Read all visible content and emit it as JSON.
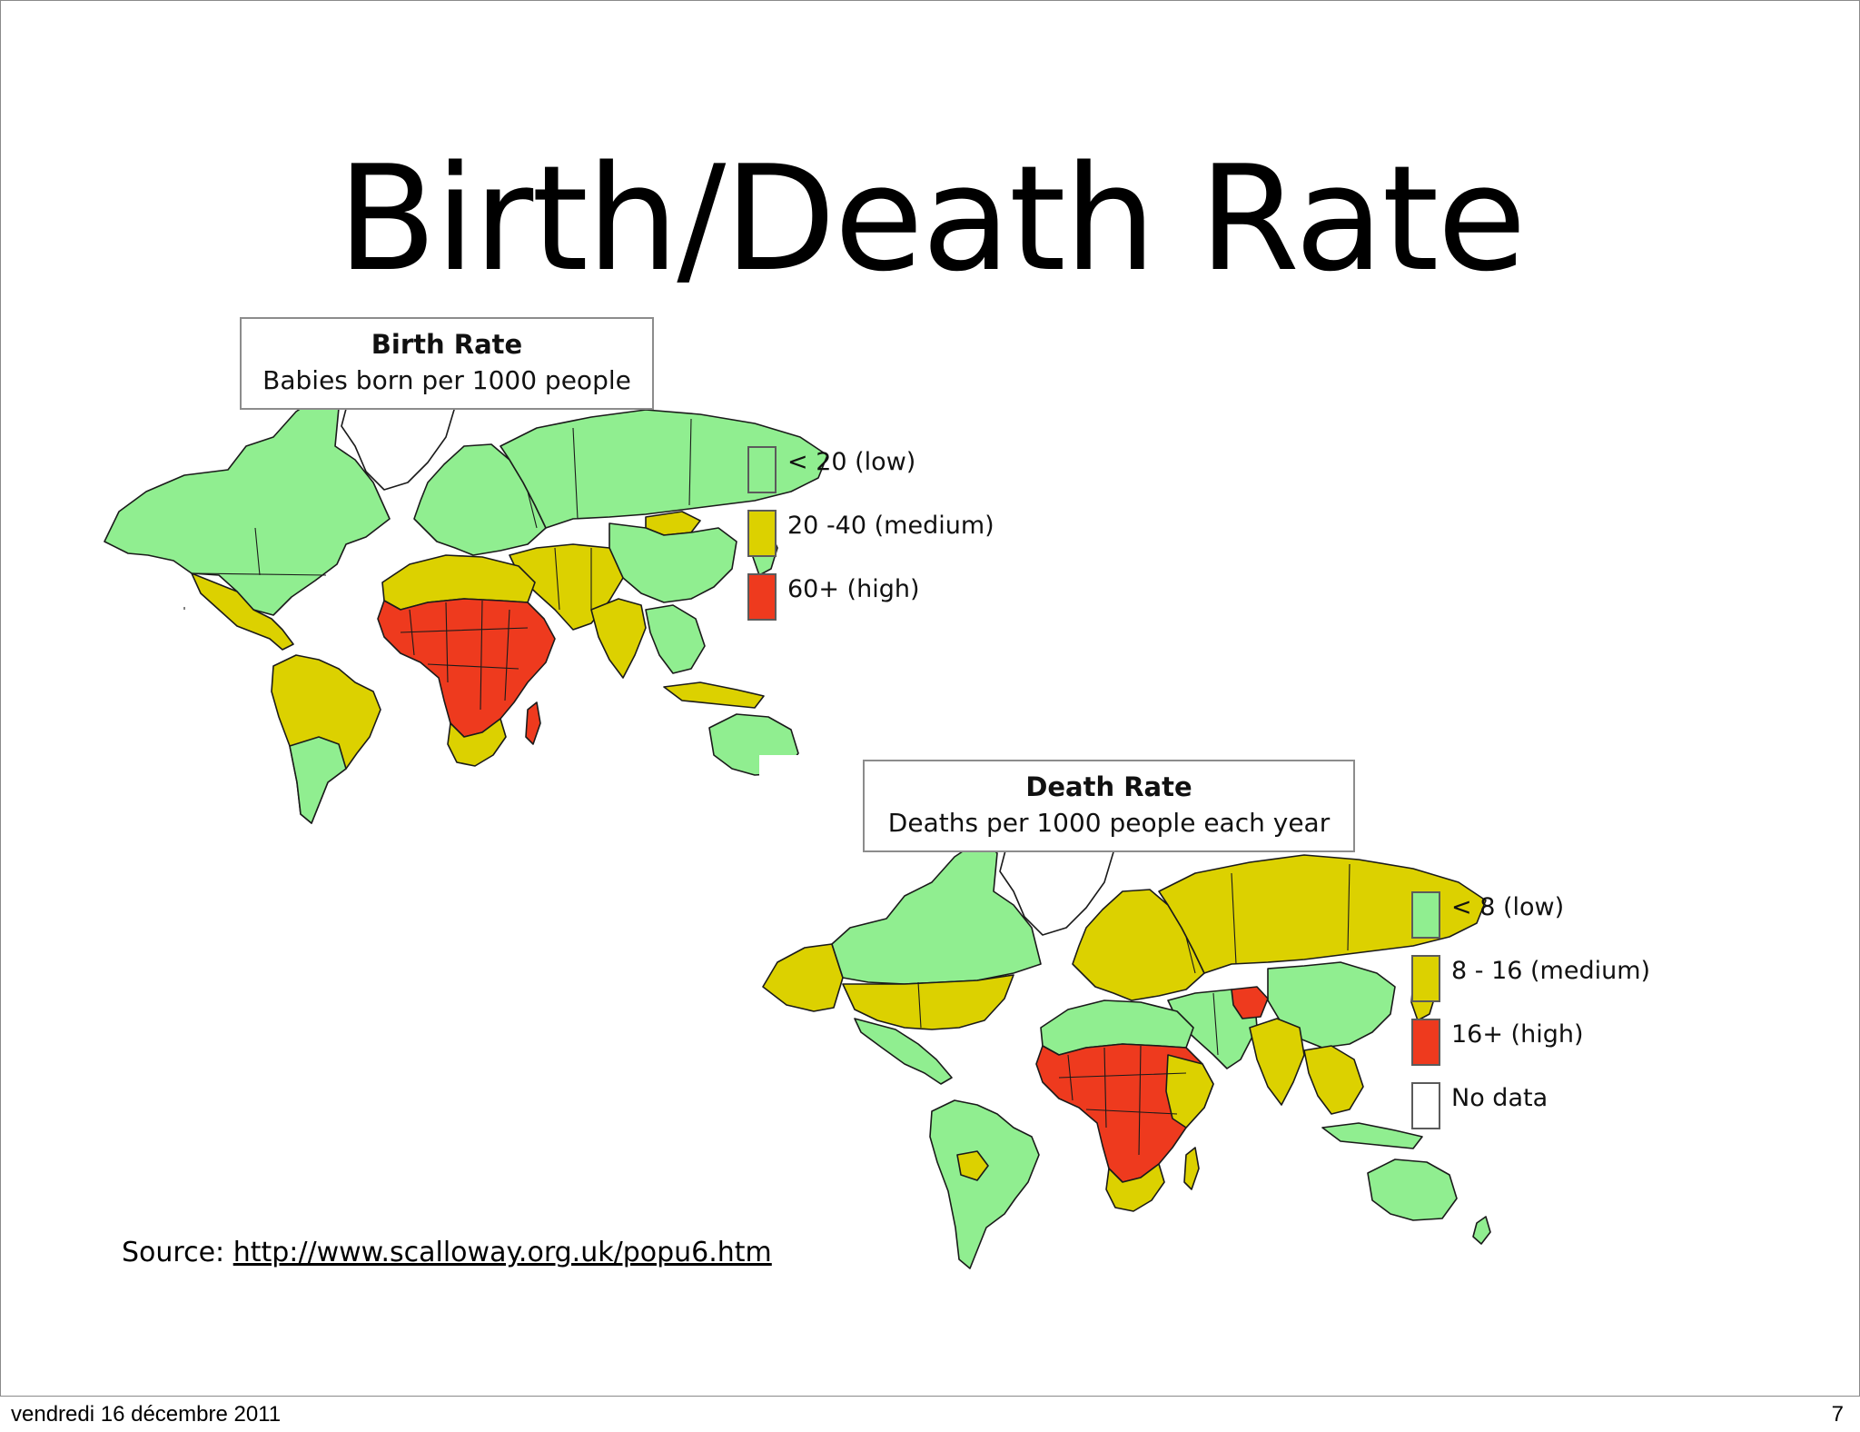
{
  "slide": {
    "title": "Birth/Death Rate",
    "source_label": "Source:",
    "source_url": "http://www.scalloway.org.uk/popu6.htm"
  },
  "colors": {
    "low": "#90ee90",
    "medium": "#dcd100",
    "high": "#ee3a1e",
    "no_data": "#ffffff"
  },
  "maps": [
    {
      "title": "Birth Rate",
      "subtitle": "Babies born per 1000 people",
      "legend": [
        {
          "label": "< 20 (low)",
          "color": "#90ee90"
        },
        {
          "label": "20 -40 (medium)",
          "color": "#dcd100"
        },
        {
          "label": "60+ (high)",
          "color": "#ee3a1e"
        }
      ]
    },
    {
      "title": "Death Rate",
      "subtitle": "Deaths per 1000 people each year",
      "legend": [
        {
          "label": "< 8 (low)",
          "color": "#90ee90"
        },
        {
          "label": "8 - 16 (medium)",
          "color": "#dcd100"
        },
        {
          "label": "16+ (high)",
          "color": "#ee3a1e"
        },
        {
          "label": "No data",
          "color": "#ffffff"
        }
      ]
    }
  ],
  "footer": {
    "date": "vendredi 16 décembre 2011",
    "page_number": "7"
  }
}
